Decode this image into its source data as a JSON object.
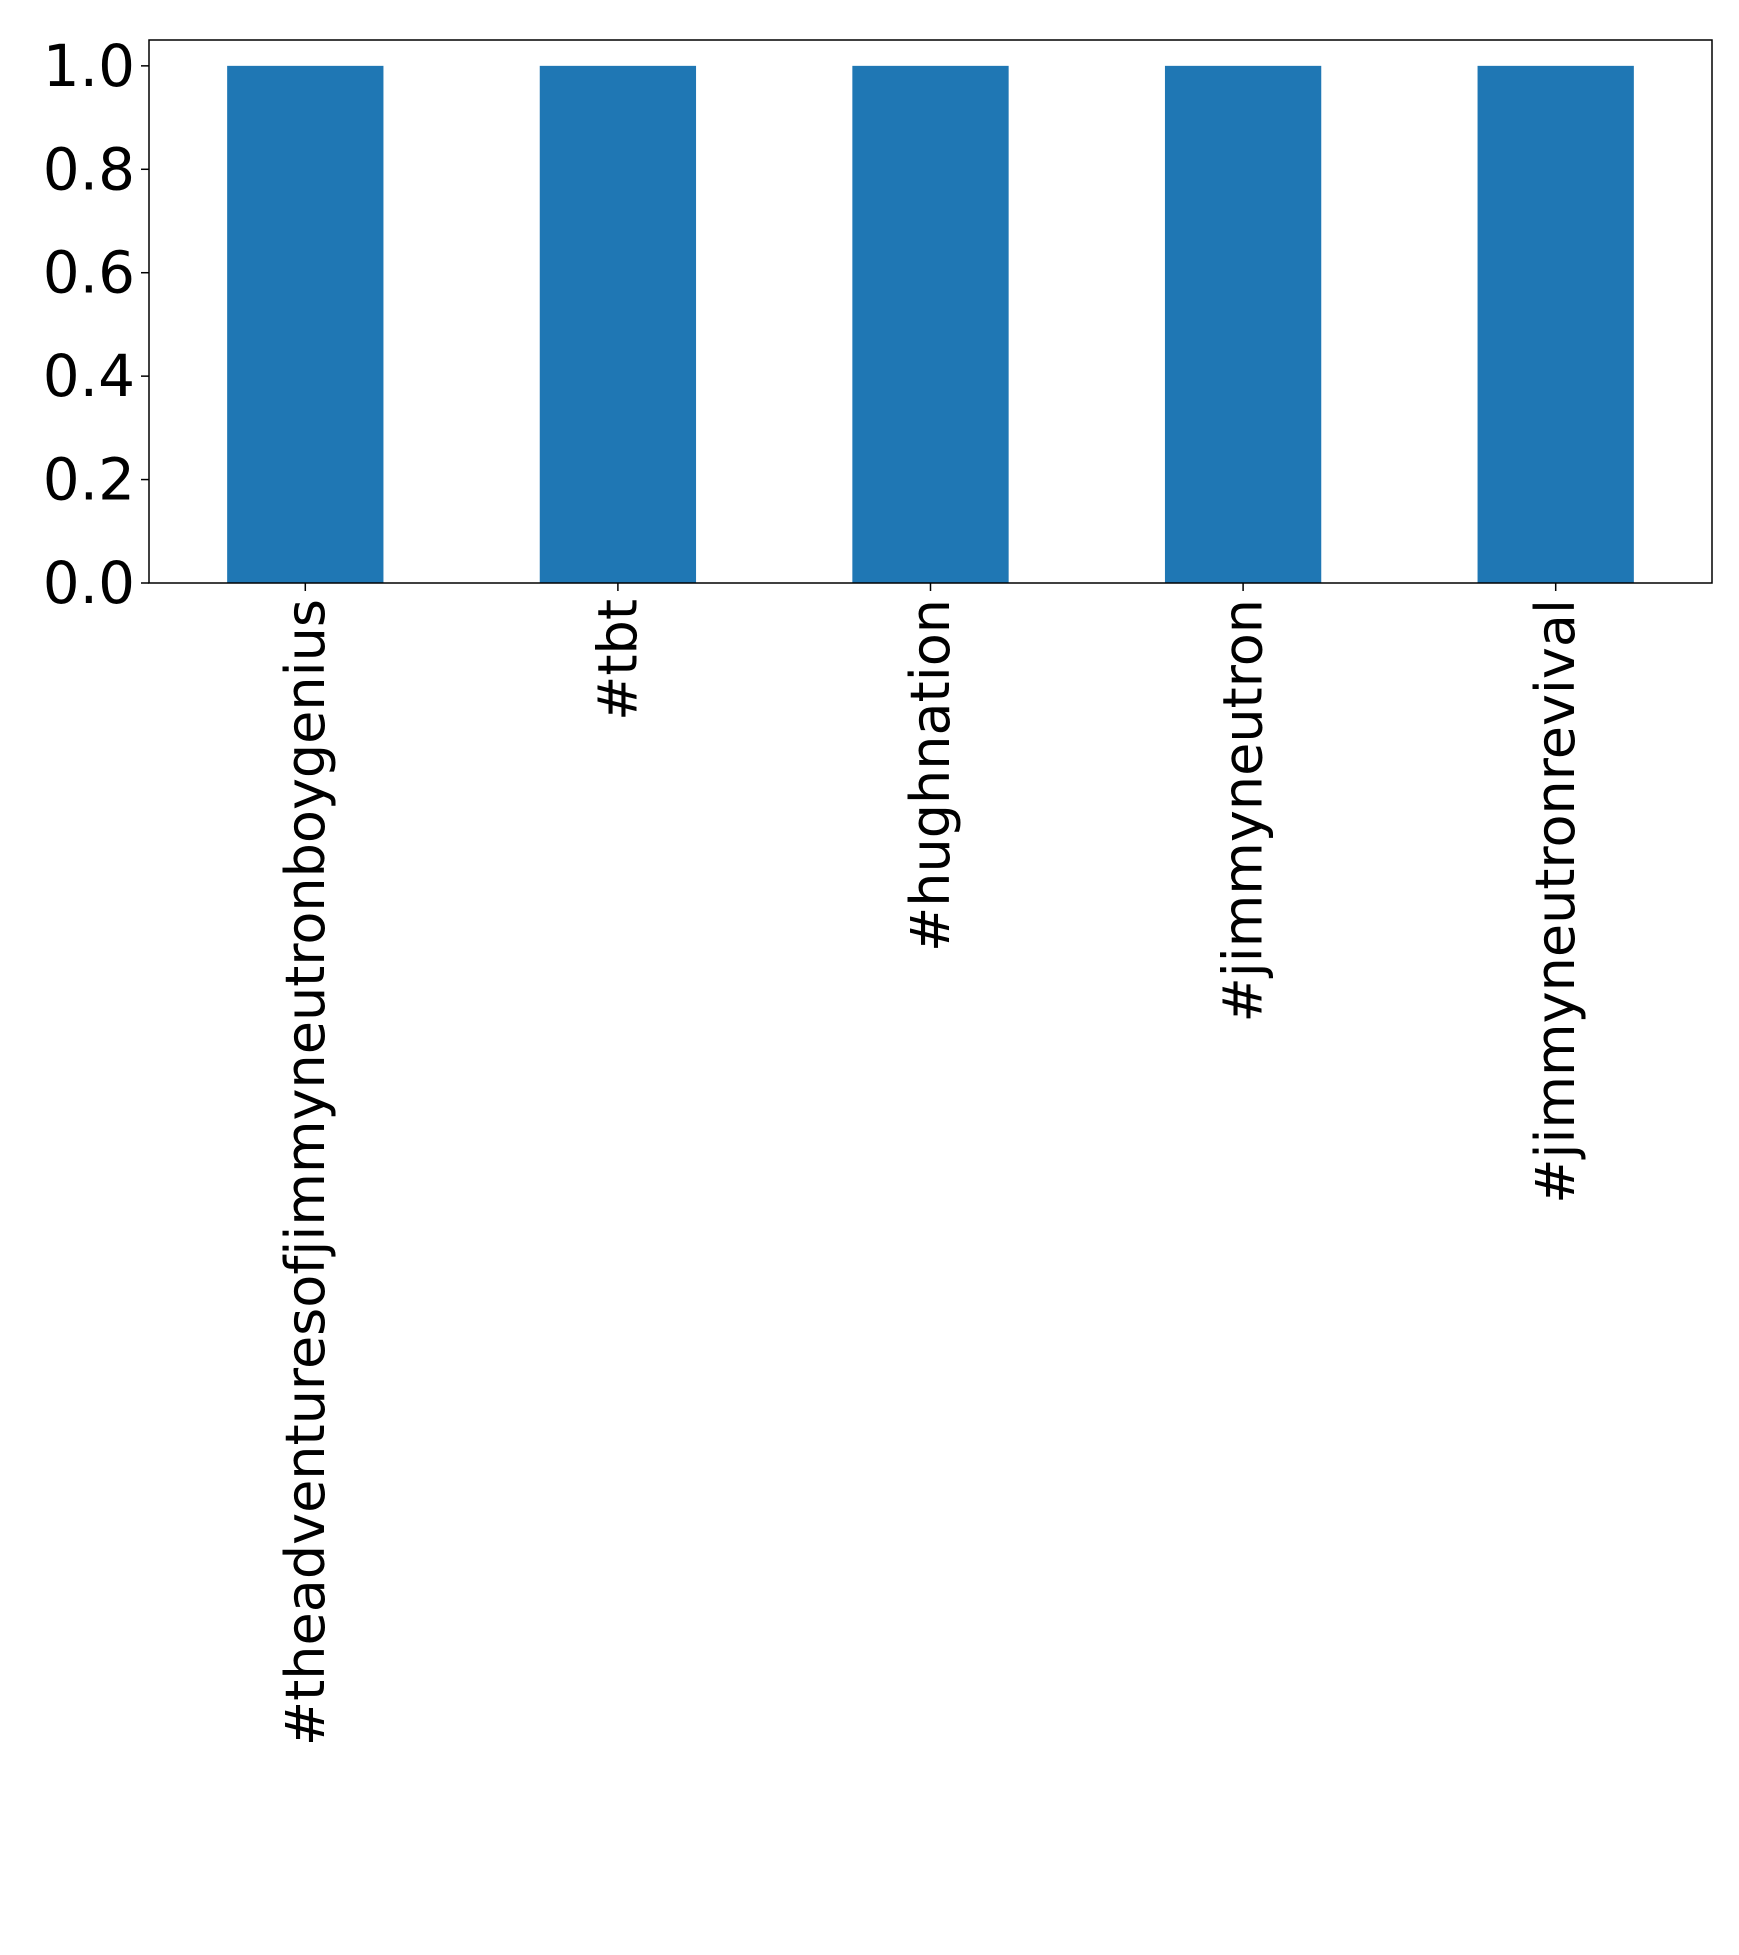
{
  "chart_data": {
    "type": "bar",
    "categories": [
      "#theadventuresofjimmyneutronboygenius",
      "#tbt",
      "#hughnation",
      "#jimmyneutron",
      "#jimmyneutronrevival"
    ],
    "values": [
      1,
      1,
      1,
      1,
      1
    ],
    "ylim": [
      0,
      1.05
    ],
    "yticks": [
      "0.0",
      "0.2",
      "0.4",
      "0.6",
      "0.8",
      "1.0"
    ],
    "grid": false,
    "bar_color": "#1f77b4"
  }
}
